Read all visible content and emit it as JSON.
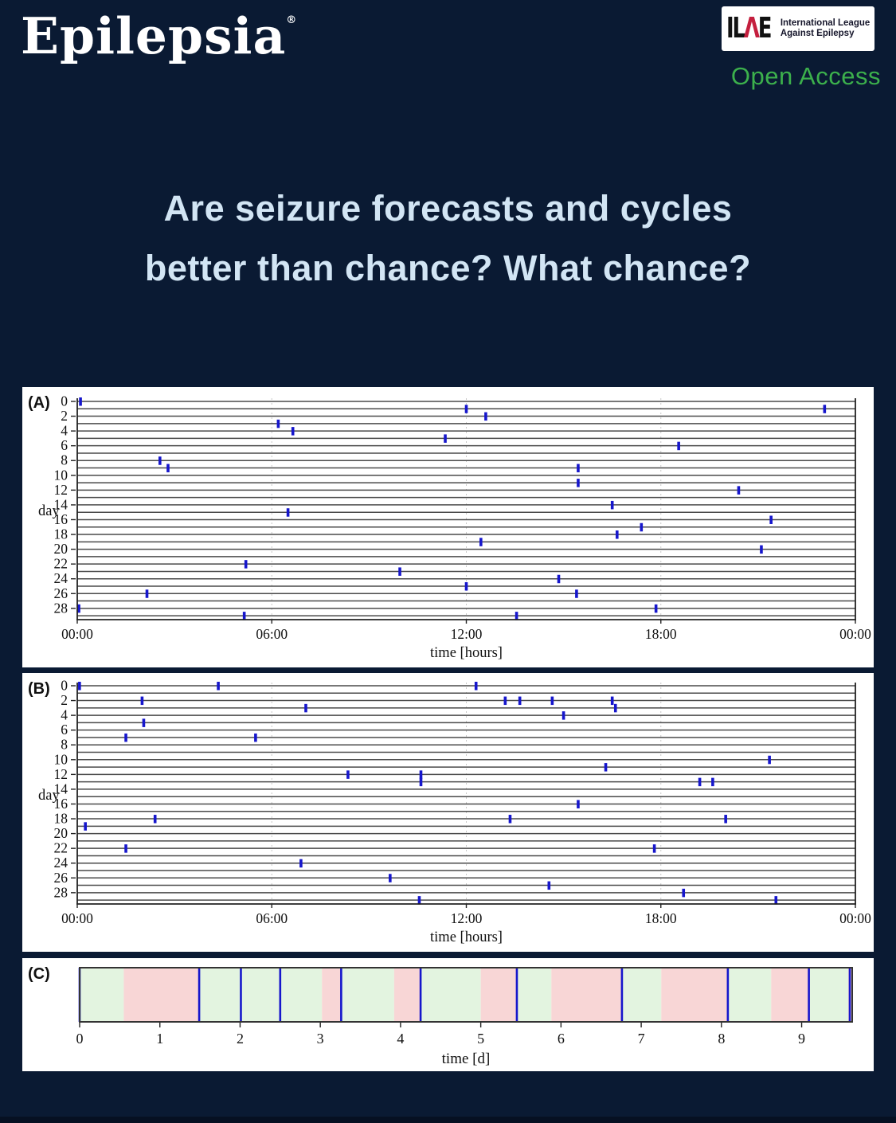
{
  "header": {
    "journal": "Epilepsia",
    "reg": "®",
    "ilae_glyph_il": "IL",
    "ilae_glyph_a": "Λ",
    "ilae_glyph_e": "E",
    "ilae_line1": "International League",
    "ilae_line2": "Against Epilepsy",
    "open_access": "Open Access"
  },
  "title": {
    "line1": "Are seizure forecasts and cycles",
    "line2": "better than chance? What chance?"
  },
  "colors": {
    "background": "#0a1a33",
    "title_text": "#d2e5f4",
    "open_access_green": "#3cb04c",
    "ilae_red": "#c41f3e",
    "seizure_blue": "#1616cc",
    "row_line": "#4a4a4a",
    "frame": "#222222",
    "gridline_dotted": "#c8c8c8",
    "risk_green": "#e3f4e0",
    "risk_pink": "#f8d6d6",
    "axis_text": "#111111"
  },
  "chart_data": [
    {
      "id": "A",
      "type": "scatter",
      "panel_label": "(A)",
      "description": "seizure raster: one row per day, blue tick per seizure",
      "xlabel": "time [hours]",
      "ylabel": "day",
      "x_ticks": [
        "00:00",
        "06:00",
        "12:00",
        "18:00",
        "00:00"
      ],
      "x_range_hours": [
        0,
        24
      ],
      "y_ticks": [
        0,
        2,
        4,
        6,
        8,
        10,
        12,
        14,
        16,
        18,
        20,
        22,
        24,
        26,
        28
      ],
      "n_days": 30,
      "events": [
        {
          "day": 0,
          "hour": 0.1
        },
        {
          "day": 1,
          "hour": 12.0
        },
        {
          "day": 1,
          "hour": 23.05
        },
        {
          "day": 2,
          "hour": 12.6
        },
        {
          "day": 3,
          "hour": 6.2
        },
        {
          "day": 4,
          "hour": 6.65
        },
        {
          "day": 5,
          "hour": 11.35
        },
        {
          "day": 6,
          "hour": 18.55
        },
        {
          "day": 8,
          "hour": 2.55
        },
        {
          "day": 9,
          "hour": 2.8
        },
        {
          "day": 9,
          "hour": 15.45
        },
        {
          "day": 11,
          "hour": 15.45
        },
        {
          "day": 12,
          "hour": 20.4
        },
        {
          "day": 14,
          "hour": 16.5
        },
        {
          "day": 15,
          "hour": 6.5
        },
        {
          "day": 16,
          "hour": 21.4
        },
        {
          "day": 17,
          "hour": 17.4
        },
        {
          "day": 18,
          "hour": 16.65
        },
        {
          "day": 19,
          "hour": 12.45
        },
        {
          "day": 20,
          "hour": 21.1
        },
        {
          "day": 22,
          "hour": 5.2
        },
        {
          "day": 23,
          "hour": 9.95
        },
        {
          "day": 24,
          "hour": 14.85
        },
        {
          "day": 25,
          "hour": 12.0
        },
        {
          "day": 26,
          "hour": 2.15
        },
        {
          "day": 26,
          "hour": 15.4
        },
        {
          "day": 28,
          "hour": 0.05
        },
        {
          "day": 28,
          "hour": 17.85
        },
        {
          "day": 29,
          "hour": 5.15
        },
        {
          "day": 29,
          "hour": 13.55
        }
      ]
    },
    {
      "id": "B",
      "type": "scatter",
      "panel_label": "(B)",
      "description": "seizure raster: one row per day, blue tick per seizure",
      "xlabel": "time [hours]",
      "ylabel": "day",
      "x_ticks": [
        "00:00",
        "06:00",
        "12:00",
        "18:00",
        "00:00"
      ],
      "x_range_hours": [
        0,
        24
      ],
      "y_ticks": [
        0,
        2,
        4,
        6,
        8,
        10,
        12,
        14,
        16,
        18,
        20,
        22,
        24,
        26,
        28
      ],
      "n_days": 30,
      "events": [
        {
          "day": 0,
          "hour": 0.07
        },
        {
          "day": 0,
          "hour": 4.35
        },
        {
          "day": 0,
          "hour": 12.3
        },
        {
          "day": 2,
          "hour": 2.0
        },
        {
          "day": 2,
          "hour": 13.2
        },
        {
          "day": 2,
          "hour": 13.65
        },
        {
          "day": 2,
          "hour": 14.65
        },
        {
          "day": 2,
          "hour": 16.5
        },
        {
          "day": 3,
          "hour": 7.05
        },
        {
          "day": 3,
          "hour": 16.6
        },
        {
          "day": 4,
          "hour": 15.0
        },
        {
          "day": 5,
          "hour": 2.05
        },
        {
          "day": 7,
          "hour": 1.5
        },
        {
          "day": 7,
          "hour": 5.5
        },
        {
          "day": 10,
          "hour": 21.35
        },
        {
          "day": 11,
          "hour": 16.3
        },
        {
          "day": 12,
          "hour": 8.35
        },
        {
          "day": 12,
          "hour": 10.6
        },
        {
          "day": 13,
          "hour": 10.6
        },
        {
          "day": 13,
          "hour": 19.2
        },
        {
          "day": 13,
          "hour": 19.6
        },
        {
          "day": 16,
          "hour": 15.45
        },
        {
          "day": 18,
          "hour": 2.4
        },
        {
          "day": 18,
          "hour": 13.35
        },
        {
          "day": 18,
          "hour": 20.0
        },
        {
          "day": 19,
          "hour": 0.25
        },
        {
          "day": 22,
          "hour": 1.5
        },
        {
          "day": 22,
          "hour": 17.8
        },
        {
          "day": 24,
          "hour": 6.9
        },
        {
          "day": 26,
          "hour": 9.65
        },
        {
          "day": 27,
          "hour": 14.55
        },
        {
          "day": 28,
          "hour": 18.7
        },
        {
          "day": 29,
          "hour": 10.55
        },
        {
          "day": 29,
          "hour": 21.55
        }
      ]
    },
    {
      "id": "C",
      "type": "area",
      "panel_label": "(C)",
      "description": "risk-state timeline: green/pink segments with blue seizure lines",
      "xlabel": "time [d]",
      "x_ticks": [
        "0",
        "1",
        "2",
        "3",
        "4",
        "5",
        "6",
        "7",
        "8",
        "9"
      ],
      "x_range_days": [
        0,
        9.63
      ],
      "segments": [
        {
          "start": 0.0,
          "end": 0.55,
          "color": "green"
        },
        {
          "start": 0.55,
          "end": 1.49,
          "color": "pink"
        },
        {
          "start": 1.49,
          "end": 3.02,
          "color": "green"
        },
        {
          "start": 3.02,
          "end": 3.26,
          "color": "pink"
        },
        {
          "start": 3.26,
          "end": 3.92,
          "color": "green"
        },
        {
          "start": 3.92,
          "end": 4.25,
          "color": "pink"
        },
        {
          "start": 4.25,
          "end": 5.0,
          "color": "green"
        },
        {
          "start": 5.0,
          "end": 5.45,
          "color": "pink"
        },
        {
          "start": 5.45,
          "end": 5.88,
          "color": "green"
        },
        {
          "start": 5.88,
          "end": 6.76,
          "color": "pink"
        },
        {
          "start": 6.76,
          "end": 7.25,
          "color": "green"
        },
        {
          "start": 7.25,
          "end": 8.08,
          "color": "pink"
        },
        {
          "start": 8.08,
          "end": 8.62,
          "color": "green"
        },
        {
          "start": 8.62,
          "end": 9.09,
          "color": "pink"
        },
        {
          "start": 9.09,
          "end": 9.58,
          "color": "green"
        },
        {
          "start": 9.58,
          "end": 9.63,
          "color": "pink"
        }
      ],
      "seizure_lines_days": [
        0.0,
        1.49,
        2.01,
        2.5,
        3.26,
        4.25,
        5.45,
        6.76,
        8.08,
        9.09,
        9.6
      ]
    }
  ]
}
